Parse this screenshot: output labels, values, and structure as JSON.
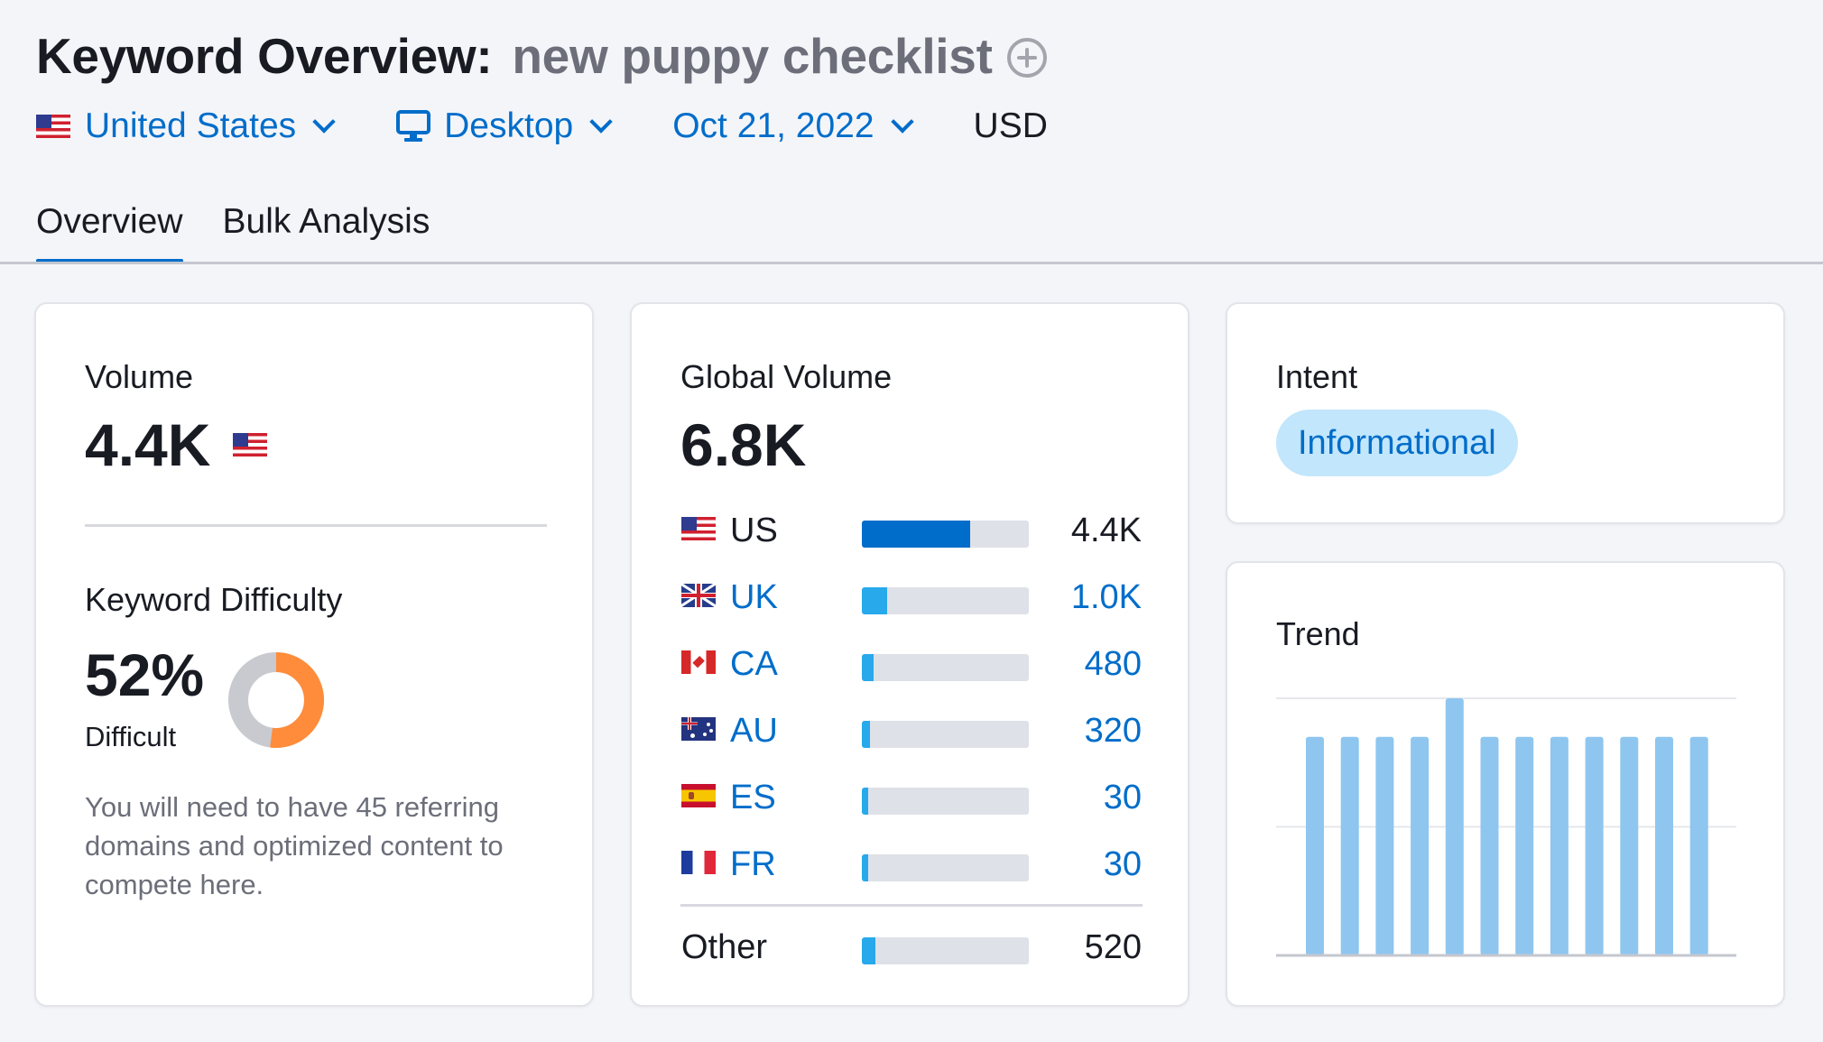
{
  "header": {
    "title": "Keyword Overview:",
    "keyword": "new puppy checklist"
  },
  "filters": {
    "country": "United States",
    "device": "Desktop",
    "date": "Oct 21, 2022",
    "currency": "USD"
  },
  "tabs": [
    {
      "label": "Overview",
      "active": true
    },
    {
      "label": "Bulk Analysis",
      "active": false
    }
  ],
  "volume_card": {
    "label": "Volume",
    "value": "4.4K"
  },
  "kd_card": {
    "label": "Keyword Difficulty",
    "value": "52%",
    "percent": 52,
    "level": "Difficult",
    "description": "You will need to have 45 referring domains and optimized content to compete here.",
    "colors": {
      "fill": "#ff8c3a",
      "track": "#c8cad0"
    }
  },
  "global_card": {
    "label": "Global Volume",
    "value": "6.8K",
    "countries": [
      {
        "code": "US",
        "value": "4.4K",
        "share": 0.65,
        "flag": "flag-us"
      },
      {
        "code": "UK",
        "value": "1.0K",
        "share": 0.15,
        "flag": "flag-uk"
      },
      {
        "code": "CA",
        "value": "480",
        "share": 0.07,
        "flag": "flag-ca"
      },
      {
        "code": "AU",
        "value": "320",
        "share": 0.05,
        "flag": "flag-au"
      },
      {
        "code": "ES",
        "value": "30",
        "share": 0.04,
        "flag": "flag-es"
      },
      {
        "code": "FR",
        "value": "30",
        "share": 0.04,
        "flag": "flag-fr"
      }
    ],
    "other": {
      "label": "Other",
      "value": "520",
      "share": 0.08
    }
  },
  "intent_card": {
    "label": "Intent",
    "badge": "Informational"
  },
  "trend_card": {
    "label": "Trend",
    "chart_data": {
      "type": "bar",
      "values": [
        0.85,
        0.85,
        0.85,
        0.85,
        1.0,
        0.85,
        0.85,
        0.85,
        0.85,
        0.85,
        0.85,
        0.85
      ],
      "ylim": [
        0,
        1.0
      ],
      "grid": true,
      "color": "#8ec6ef"
    }
  },
  "colors": {
    "accent": "#006dca",
    "light_accent": "#27a9ec",
    "badge_bg": "#c2e6fb"
  }
}
